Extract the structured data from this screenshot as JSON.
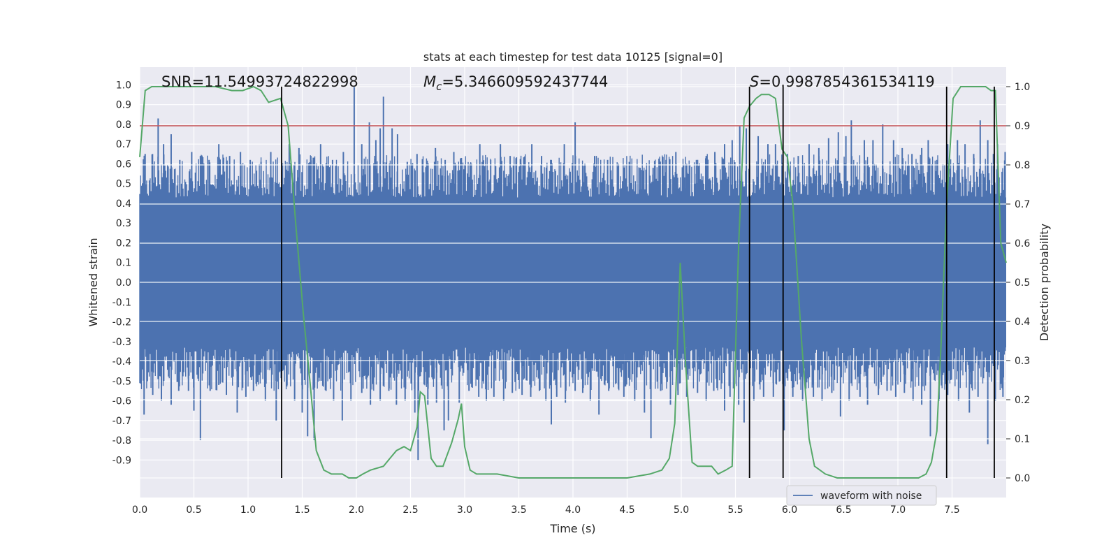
{
  "chart_data": {
    "type": "line",
    "title": "stats at each timestep for test data 10125 [signal=0]",
    "xlabel": "Time (s)",
    "ylabel": "Whitened strain",
    "y2label": "Detection probability",
    "xlim": [
      0.0,
      8.0
    ],
    "ylim": [
      -1.09,
      1.09
    ],
    "y2lim": [
      -0.05,
      1.05
    ],
    "xticks": [
      "0.0",
      "0.5",
      "1.0",
      "1.5",
      "2.0",
      "2.5",
      "3.0",
      "3.5",
      "4.0",
      "4.5",
      "5.0",
      "5.5",
      "6.0",
      "6.5",
      "7.0",
      "7.5"
    ],
    "yticks": [
      "-0.9",
      "-0.8",
      "-0.7",
      "-0.6",
      "-0.5",
      "-0.4",
      "-0.3",
      "-0.2",
      "-0.1",
      "0.0",
      "0.1",
      "0.2",
      "0.3",
      "0.4",
      "0.5",
      "0.6",
      "0.7",
      "0.8",
      "0.9",
      "1.0"
    ],
    "y2ticks": [
      "0.0",
      "0.1",
      "0.2",
      "0.3",
      "0.4",
      "0.5",
      "0.6",
      "0.7",
      "0.8",
      "0.9",
      "1.0"
    ],
    "grid": true,
    "legend": {
      "placement": "lower-right",
      "entries": [
        "waveform with noise"
      ]
    },
    "annotations": {
      "snr": "SNR=11.54993724822998",
      "mc_symbol": "M",
      "mc_sub": "c",
      "mc_value": "=5.346609592437744",
      "s_symbol": "S",
      "s_value": "=0.9987854361534119"
    },
    "threshold": {
      "y2": 0.9,
      "color": "#c44e52"
    },
    "vlines": [
      1.31,
      5.63,
      5.94,
      7.45,
      7.89
    ],
    "colors": {
      "waveform": "#4c72b0",
      "probability": "#55a868",
      "threshold": "#c44e52",
      "vline": "#000000"
    },
    "waveform": {
      "name": "waveform with noise",
      "envelope_upper": 0.43,
      "envelope_lower": -0.33,
      "peaks": [
        [
          0.05,
          0.65
        ],
        [
          0.12,
          0.6
        ],
        [
          0.17,
          0.83
        ],
        [
          0.22,
          0.7
        ],
        [
          0.29,
          0.75
        ],
        [
          0.37,
          0.62
        ],
        [
          0.48,
          0.66
        ],
        [
          0.56,
          0.64
        ],
        [
          0.64,
          0.62
        ],
        [
          0.73,
          0.7
        ],
        [
          0.83,
          0.64
        ],
        [
          0.93,
          0.66
        ],
        [
          1.02,
          0.62
        ],
        [
          1.12,
          0.61
        ],
        [
          1.21,
          0.66
        ],
        [
          1.38,
          0.7
        ],
        [
          1.47,
          0.68
        ],
        [
          1.58,
          0.64
        ],
        [
          1.67,
          0.7
        ],
        [
          1.78,
          0.62
        ],
        [
          1.88,
          0.66
        ],
        [
          1.98,
          0.99
        ],
        [
          2.05,
          0.7
        ],
        [
          2.12,
          0.81
        ],
        [
          2.18,
          0.72
        ],
        [
          2.22,
          0.78
        ],
        [
          2.25,
          0.94
        ],
        [
          2.33,
          0.78
        ],
        [
          2.38,
          0.75
        ],
        [
          2.47,
          0.61
        ],
        [
          2.56,
          0.65
        ],
        [
          2.65,
          0.6
        ],
        [
          2.73,
          0.68
        ],
        [
          2.82,
          0.62
        ],
        [
          2.9,
          0.66
        ],
        [
          2.97,
          0.63
        ],
        [
          3.05,
          0.6
        ],
        [
          3.14,
          0.7
        ],
        [
          3.24,
          0.62
        ],
        [
          3.33,
          0.7
        ],
        [
          3.42,
          0.64
        ],
        [
          3.52,
          0.6
        ],
        [
          3.62,
          0.7
        ],
        [
          3.71,
          0.64
        ],
        [
          3.8,
          0.62
        ],
        [
          3.92,
          0.7
        ],
        [
          4.02,
          0.81
        ],
        [
          4.11,
          0.6
        ],
        [
          4.2,
          0.64
        ],
        [
          4.32,
          0.62
        ],
        [
          4.42,
          0.6
        ],
        [
          4.52,
          0.61
        ],
        [
          4.62,
          0.58
        ],
        [
          4.74,
          0.58
        ],
        [
          4.86,
          0.62
        ],
        [
          4.95,
          0.66
        ],
        [
          5.05,
          0.6
        ],
        [
          5.14,
          0.62
        ],
        [
          5.23,
          0.64
        ],
        [
          5.31,
          0.66
        ],
        [
          5.4,
          0.7
        ],
        [
          5.47,
          0.72
        ],
        [
          5.54,
          0.79
        ],
        [
          5.6,
          0.78
        ],
        [
          5.71,
          0.74
        ],
        [
          5.8,
          0.7
        ],
        [
          5.87,
          0.7
        ],
        [
          5.98,
          0.65
        ],
        [
          6.08,
          0.64
        ],
        [
          6.18,
          0.7
        ],
        [
          6.27,
          0.68
        ],
        [
          6.36,
          0.73
        ],
        [
          6.45,
          0.76
        ],
        [
          6.52,
          0.74
        ],
        [
          6.57,
          0.82
        ],
        [
          6.69,
          0.72
        ],
        [
          6.77,
          0.72
        ],
        [
          6.86,
          0.8
        ],
        [
          6.96,
          0.72
        ],
        [
          7.04,
          0.68
        ],
        [
          7.13,
          0.65
        ],
        [
          7.22,
          0.68
        ],
        [
          7.28,
          0.72
        ],
        [
          7.36,
          0.62
        ],
        [
          7.46,
          0.7
        ],
        [
          7.55,
          0.72
        ],
        [
          7.62,
          0.7
        ],
        [
          7.7,
          0.65
        ],
        [
          7.76,
          0.82
        ],
        [
          7.83,
          0.72
        ],
        [
          7.92,
          0.7
        ],
        [
          7.99,
          0.66
        ]
      ],
      "troughs": [
        [
          0.04,
          -0.67
        ],
        [
          0.12,
          -0.57
        ],
        [
          0.2,
          -0.6
        ],
        [
          0.29,
          -0.62
        ],
        [
          0.36,
          -0.55
        ],
        [
          0.45,
          -0.55
        ],
        [
          0.5,
          -0.65
        ],
        [
          0.56,
          -0.8
        ],
        [
          0.65,
          -0.55
        ],
        [
          0.73,
          -0.52
        ],
        [
          0.8,
          -0.57
        ],
        [
          0.9,
          -0.66
        ],
        [
          0.98,
          -0.58
        ],
        [
          1.05,
          -0.55
        ],
        [
          1.16,
          -0.6
        ],
        [
          1.26,
          -0.7
        ],
        [
          1.36,
          -0.52
        ],
        [
          1.43,
          -0.6
        ],
        [
          1.5,
          -0.66
        ],
        [
          1.55,
          -0.78
        ],
        [
          1.61,
          -0.8
        ],
        [
          1.72,
          -0.55
        ],
        [
          1.79,
          -0.6
        ],
        [
          1.87,
          -0.7
        ],
        [
          1.95,
          -0.6
        ],
        [
          2.05,
          -0.56
        ],
        [
          2.13,
          -0.62
        ],
        [
          2.22,
          -0.6
        ],
        [
          2.3,
          -0.55
        ],
        [
          2.37,
          -0.62
        ],
        [
          2.45,
          -0.6
        ],
        [
          2.54,
          -0.66
        ],
        [
          2.57,
          -0.9
        ],
        [
          2.66,
          -0.62
        ],
        [
          2.74,
          -0.61
        ],
        [
          2.81,
          -0.75
        ],
        [
          2.85,
          -0.7
        ],
        [
          2.95,
          -0.61
        ],
        [
          3.04,
          -0.55
        ],
        [
          3.13,
          -0.58
        ],
        [
          3.2,
          -0.6
        ],
        [
          3.27,
          -0.58
        ],
        [
          3.36,
          -0.6
        ],
        [
          3.44,
          -0.56
        ],
        [
          3.53,
          -0.57
        ],
        [
          3.61,
          -0.58
        ],
        [
          3.69,
          -0.55
        ],
        [
          3.75,
          -0.6
        ],
        [
          3.8,
          -0.72
        ],
        [
          3.85,
          -0.58
        ],
        [
          3.93,
          -0.61
        ],
        [
          4.02,
          -0.55
        ],
        [
          4.09,
          -0.56
        ],
        [
          4.16,
          -0.6
        ],
        [
          4.24,
          -0.67
        ],
        [
          4.33,
          -0.55
        ],
        [
          4.42,
          -0.54
        ],
        [
          4.47,
          -0.58
        ],
        [
          4.57,
          -0.6
        ],
        [
          4.66,
          -0.66
        ],
        [
          4.72,
          -0.79
        ],
        [
          4.81,
          -0.55
        ],
        [
          4.9,
          -0.62
        ],
        [
          4.97,
          -0.57
        ],
        [
          5.05,
          -0.58
        ],
        [
          5.15,
          -0.56
        ],
        [
          5.23,
          -0.6
        ],
        [
          5.3,
          -0.55
        ],
        [
          5.4,
          -0.65
        ],
        [
          5.45,
          -0.58
        ],
        [
          5.53,
          -0.62
        ],
        [
          5.58,
          -0.71
        ],
        [
          5.67,
          -0.6
        ],
        [
          5.76,
          -0.58
        ],
        [
          5.85,
          -0.58
        ],
        [
          5.95,
          -0.75
        ],
        [
          6.03,
          -0.58
        ],
        [
          6.12,
          -0.6
        ],
        [
          6.22,
          -0.58
        ],
        [
          6.3,
          -0.6
        ],
        [
          6.39,
          -0.56
        ],
        [
          6.47,
          -0.68
        ],
        [
          6.55,
          -0.6
        ],
        [
          6.65,
          -0.58
        ],
        [
          6.72,
          -0.62
        ],
        [
          6.82,
          -0.57
        ],
        [
          6.9,
          -0.55
        ],
        [
          6.98,
          -0.58
        ],
        [
          7.06,
          -0.56
        ],
        [
          7.14,
          -0.6
        ],
        [
          7.22,
          -0.62
        ],
        [
          7.3,
          -0.78
        ],
        [
          7.38,
          -0.6
        ],
        [
          7.46,
          -0.57
        ],
        [
          7.56,
          -0.6
        ],
        [
          7.66,
          -0.66
        ],
        [
          7.74,
          -0.58
        ],
        [
          7.83,
          -0.82
        ],
        [
          7.9,
          -0.6
        ],
        [
          7.97,
          -0.58
        ]
      ]
    },
    "probability": {
      "x": [
        0.0,
        0.05,
        0.11,
        0.18,
        0.3,
        0.5,
        0.7,
        0.85,
        0.95,
        1.05,
        1.12,
        1.19,
        1.3,
        1.37,
        1.44,
        1.51,
        1.57,
        1.63,
        1.7,
        1.77,
        1.87,
        1.93,
        2.0,
        2.06,
        2.13,
        2.25,
        2.31,
        2.37,
        2.44,
        2.5,
        2.56,
        2.59,
        2.63,
        2.69,
        2.74,
        2.8,
        2.88,
        2.94,
        2.97,
        3.0,
        3.05,
        3.11,
        3.17,
        3.3,
        3.5,
        3.8,
        4.1,
        4.5,
        4.71,
        4.82,
        4.89,
        4.94,
        4.99,
        5.04,
        5.1,
        5.15,
        5.21,
        5.28,
        5.34,
        5.41,
        5.47,
        5.53,
        5.58,
        5.63,
        5.69,
        5.74,
        5.81,
        5.87,
        5.93,
        5.98,
        6.03,
        6.11,
        6.18,
        6.23,
        6.33,
        6.44,
        6.53,
        6.59,
        6.7,
        7.0,
        7.19,
        7.26,
        7.31,
        7.36,
        7.4,
        7.45,
        7.51,
        7.58,
        7.64,
        7.7,
        7.81,
        7.86,
        7.9,
        7.95,
        8.0
      ],
      "values": [
        0.82,
        0.99,
        1.0,
        1.0,
        1.0,
        1.0,
        1.0,
        0.99,
        0.99,
        1.0,
        0.99,
        0.96,
        0.97,
        0.9,
        0.65,
        0.42,
        0.25,
        0.07,
        0.02,
        0.01,
        0.01,
        0.0,
        0.0,
        0.01,
        0.02,
        0.03,
        0.05,
        0.07,
        0.08,
        0.07,
        0.13,
        0.22,
        0.21,
        0.05,
        0.03,
        0.03,
        0.09,
        0.15,
        0.19,
        0.08,
        0.02,
        0.01,
        0.01,
        0.01,
        0.0,
        0.0,
        0.0,
        0.0,
        0.01,
        0.02,
        0.05,
        0.14,
        0.55,
        0.29,
        0.04,
        0.03,
        0.03,
        0.03,
        0.01,
        0.02,
        0.03,
        0.6,
        0.92,
        0.95,
        0.97,
        0.98,
        0.98,
        0.97,
        0.84,
        0.82,
        0.7,
        0.35,
        0.1,
        0.03,
        0.01,
        0.0,
        0.0,
        0.0,
        0.0,
        0.0,
        0.0,
        0.01,
        0.04,
        0.12,
        0.35,
        0.7,
        0.97,
        1.0,
        1.0,
        1.0,
        1.0,
        0.99,
        0.99,
        0.6,
        0.55
      ]
    }
  }
}
